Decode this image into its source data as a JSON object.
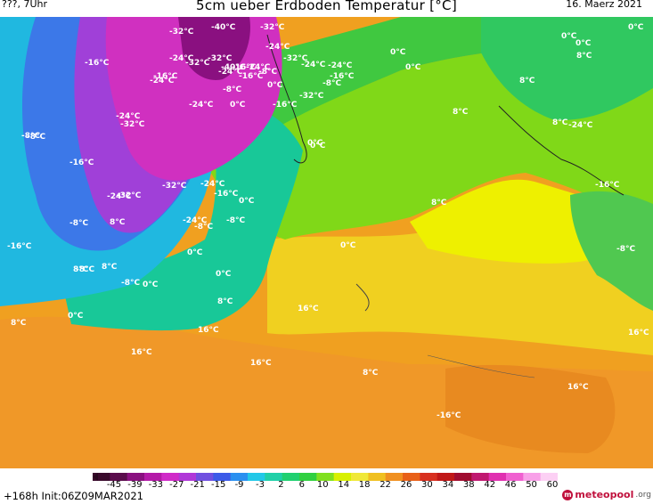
{
  "header": {
    "left": "???, 7Uhr",
    "title": "5cm ueber Erdboden Temperatur [°C]",
    "date": "16. Maerz 2021"
  },
  "map_labels": [
    "-40°C",
    "-32°C",
    "-32°C",
    "-24°C",
    "-16°C",
    "-16°C",
    "-8°C",
    "0°C",
    "0°C",
    "-16°C",
    "-24°C",
    "-32°C",
    "-24°C",
    "-32°C",
    "-40°C",
    "-24°C",
    "-16°C",
    "-24°C",
    "-8°C",
    "0°C",
    "-24°C",
    "-16°C",
    "-32°C",
    "-24°C",
    "-8°C",
    "0°C",
    "0°C",
    "-24°C",
    "-32°C",
    "-24°C",
    "-8°C",
    "-16°C",
    "-32°C",
    "0°C",
    "8°C",
    "8°C",
    "8°C",
    "-24°C",
    "-32°C",
    "-8°C",
    "-16°C",
    "-24°C",
    "-32°C",
    "-24°C",
    "-16°C",
    "0°C",
    "8°C",
    "-16°C",
    "-24°C",
    "-8°C",
    "-8°C",
    "-8°C",
    "8°C",
    "0°C",
    "-16°C",
    "0°C",
    "-8°C",
    "8°C",
    "0°C",
    "-8°C",
    "0°C",
    "8°C",
    "8°C",
    "0°C",
    "16°C",
    "8°C",
    "16°C",
    "16°C",
    "16°C",
    "8°C",
    "16°C",
    "16°C",
    "-16°C",
    "-8°C",
    "0°C",
    "0°C",
    "0°C",
    "8°C"
  ],
  "colorbar": {
    "ticks": [
      "-45",
      "-39",
      "-33",
      "-27",
      "-21",
      "-15",
      "-9",
      "-3",
      "2",
      "6",
      "10",
      "14",
      "18",
      "22",
      "26",
      "30",
      "34",
      "38",
      "42",
      "46",
      "50",
      "60"
    ],
    "colors": [
      "#3a0a2c",
      "#5a0c4c",
      "#8a1080",
      "#b41aa8",
      "#d02ac8",
      "#b038d8",
      "#7050e0",
      "#3c5ae8",
      "#2a90f0",
      "#22c8e8",
      "#20d0a8",
      "#20d070",
      "#30d040",
      "#80e020",
      "#d8f000",
      "#f0e838",
      "#f0c020",
      "#f09020",
      "#e86018",
      "#d83020",
      "#c01818",
      "#a00c30",
      "#c01870",
      "#e030b0",
      "#f060d0",
      "#f8a0e8",
      "#fcd0f4"
    ]
  },
  "footer": {
    "init": "+168h  Init:06Z09MAR2021",
    "logo": "meteopool",
    "logo_org": ".org"
  }
}
